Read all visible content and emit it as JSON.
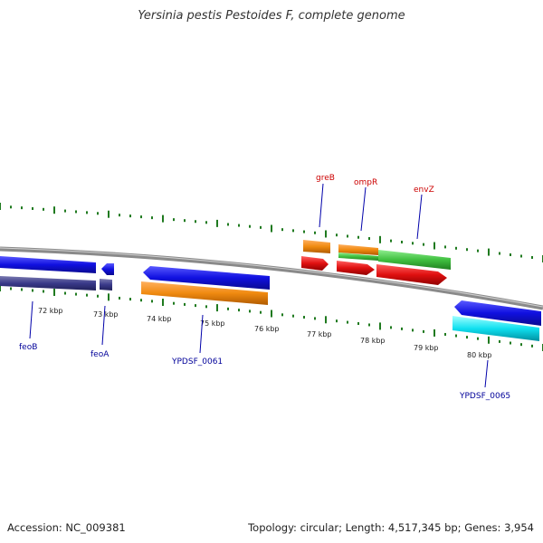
{
  "title": "Yersinia pestis Pestoides F, complete genome",
  "footer": {
    "accession": "Accession: NC_009381",
    "summary": "Topology: circular; Length: 4,517,345 bp; Genes: 3,954"
  },
  "scale": {
    "tick_labels": [
      "72 kbp",
      "73 kbp",
      "74 kbp",
      "75 kbp",
      "76 kbp",
      "77 kbp",
      "78 kbp",
      "79 kbp",
      "80 kbp"
    ]
  },
  "genes": {
    "forward_labels": [
      "greB",
      "ompR",
      "envZ"
    ],
    "reverse_labels": [
      "feoB",
      "feoA",
      "YPDSF_0061",
      "YPDSF_0065"
    ]
  },
  "colors": {
    "backbone": "#8a8a8a",
    "tick": "#1f7a1f",
    "top_label": "#cc0000",
    "bottom_label": "#000099",
    "blue": "#1010e0",
    "navy": "#3a3a8a",
    "orange": "#f08a10",
    "red": "#e01010",
    "green": "#40c040",
    "cyan": "#10e0f0"
  }
}
